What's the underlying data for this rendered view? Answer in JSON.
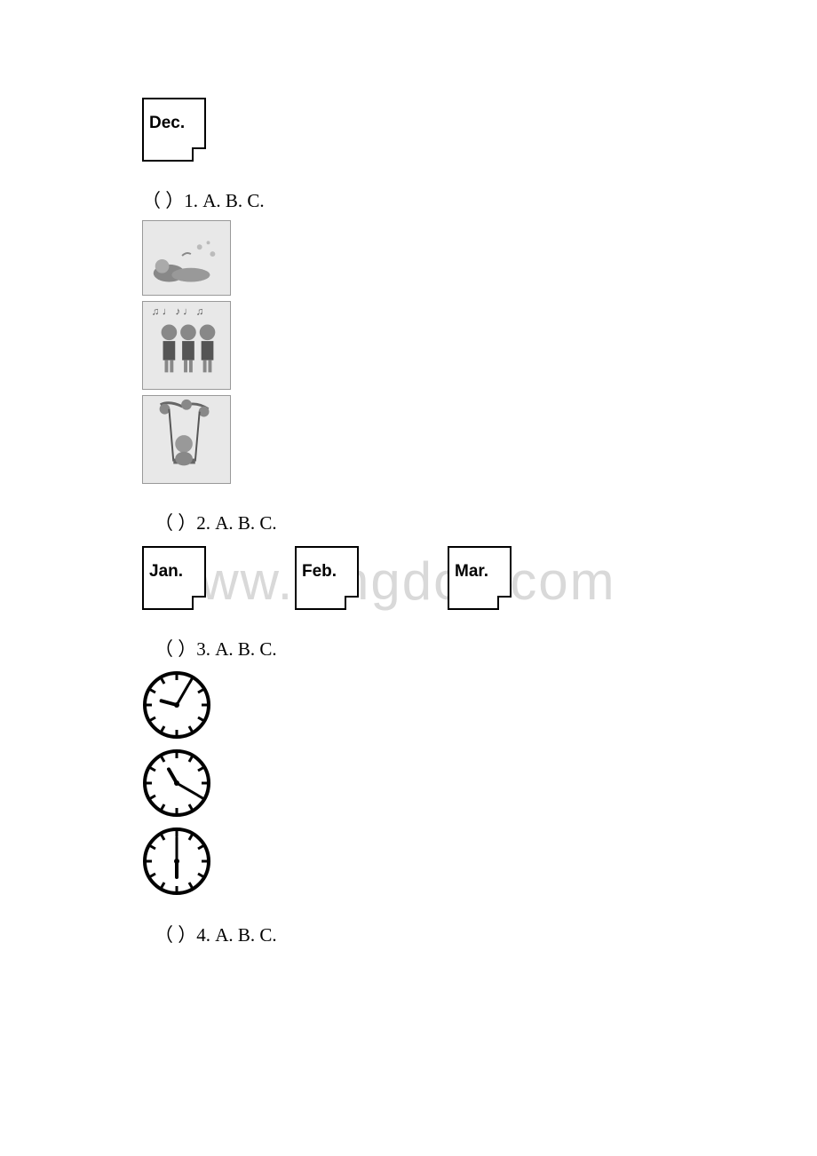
{
  "watermark": "www.bingdoc.com",
  "box_dec": "Dec.",
  "q1_line": "（ ）1. A.    B.    C.",
  "img_swim": "swimming",
  "img_sing": "singing girls",
  "img_swing": "girl on swing",
  "q2_line": "（ ）2. A.    B. C.",
  "box_jan": "Jan.",
  "box_feb": "Feb.",
  "box_mar": "Mar.",
  "q3_line": "（ ）3. A.    B.    C.",
  "q4_line": "（ ）4. A. B. C.",
  "clock1": {
    "hour_angle": 285,
    "min_angle": 30
  },
  "clock2": {
    "hour_angle": 330,
    "min_angle": 120
  },
  "clock3": {
    "hour_angle": 180,
    "min_angle": 0
  },
  "colors": {
    "text": "#000000",
    "watermark": "#d9d9d9",
    "bg": "#ffffff"
  }
}
